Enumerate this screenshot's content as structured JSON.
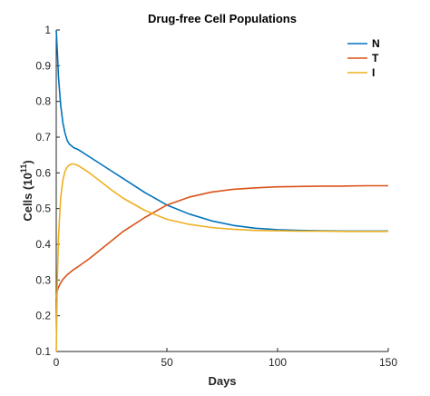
{
  "chart_data": {
    "type": "line",
    "title": "Drug-free Cell Populations",
    "xlabel": "Days",
    "ylabel_main": "Cells (10",
    "ylabel_sup": "11",
    "ylabel_end": ")",
    "xlim": [
      0,
      150
    ],
    "ylim": [
      0.1,
      1.0
    ],
    "x_ticks": [
      0,
      50,
      100,
      150
    ],
    "y_ticks": [
      0.1,
      0.2,
      0.3,
      0.4,
      0.5,
      0.6,
      0.7,
      0.8,
      0.9,
      1.0
    ],
    "x_tick_labels": [
      "0",
      "50",
      "100",
      "150"
    ],
    "y_tick_labels": [
      "0.1",
      "0.2",
      "0.3",
      "0.4",
      "0.5",
      "0.6",
      "0.7",
      "0.8",
      "0.9",
      "1"
    ],
    "grid": false,
    "legend_position": "top-right",
    "series": [
      {
        "name": "N",
        "color": "#0072BD",
        "x": [
          0,
          0.5,
          1,
          2,
          3,
          4,
          5,
          6,
          8,
          10,
          15,
          20,
          25,
          30,
          40,
          50,
          60,
          70,
          80,
          90,
          100,
          110,
          120,
          130,
          140,
          150
        ],
        "y": [
          1.0,
          0.94,
          0.87,
          0.79,
          0.74,
          0.71,
          0.69,
          0.68,
          0.67,
          0.665,
          0.645,
          0.625,
          0.605,
          0.585,
          0.545,
          0.51,
          0.485,
          0.466,
          0.453,
          0.445,
          0.441,
          0.439,
          0.438,
          0.437,
          0.437,
          0.437
        ]
      },
      {
        "name": "T",
        "color": "#D95319",
        "x": [
          0,
          0.5,
          1,
          2,
          3,
          5,
          8,
          10,
          15,
          20,
          25,
          30,
          40,
          50,
          60,
          70,
          80,
          90,
          100,
          110,
          120,
          130,
          140,
          150
        ],
        "y": [
          0.25,
          0.27,
          0.28,
          0.292,
          0.302,
          0.315,
          0.33,
          0.338,
          0.36,
          0.385,
          0.41,
          0.435,
          0.475,
          0.51,
          0.532,
          0.546,
          0.554,
          0.558,
          0.561,
          0.562,
          0.563,
          0.563,
          0.564,
          0.564
        ]
      },
      {
        "name": "I",
        "color": "#EDB120",
        "x": [
          0,
          0.5,
          1,
          2,
          3,
          4,
          5,
          6,
          7,
          8,
          10,
          15,
          20,
          25,
          30,
          40,
          50,
          60,
          70,
          80,
          90,
          100,
          110,
          120,
          130,
          140,
          150
        ],
        "y": [
          0.1,
          0.3,
          0.42,
          0.53,
          0.58,
          0.605,
          0.617,
          0.622,
          0.625,
          0.625,
          0.62,
          0.6,
          0.576,
          0.552,
          0.53,
          0.495,
          0.47,
          0.456,
          0.447,
          0.442,
          0.439,
          0.438,
          0.437,
          0.437,
          0.436,
          0.436,
          0.436
        ]
      }
    ]
  }
}
